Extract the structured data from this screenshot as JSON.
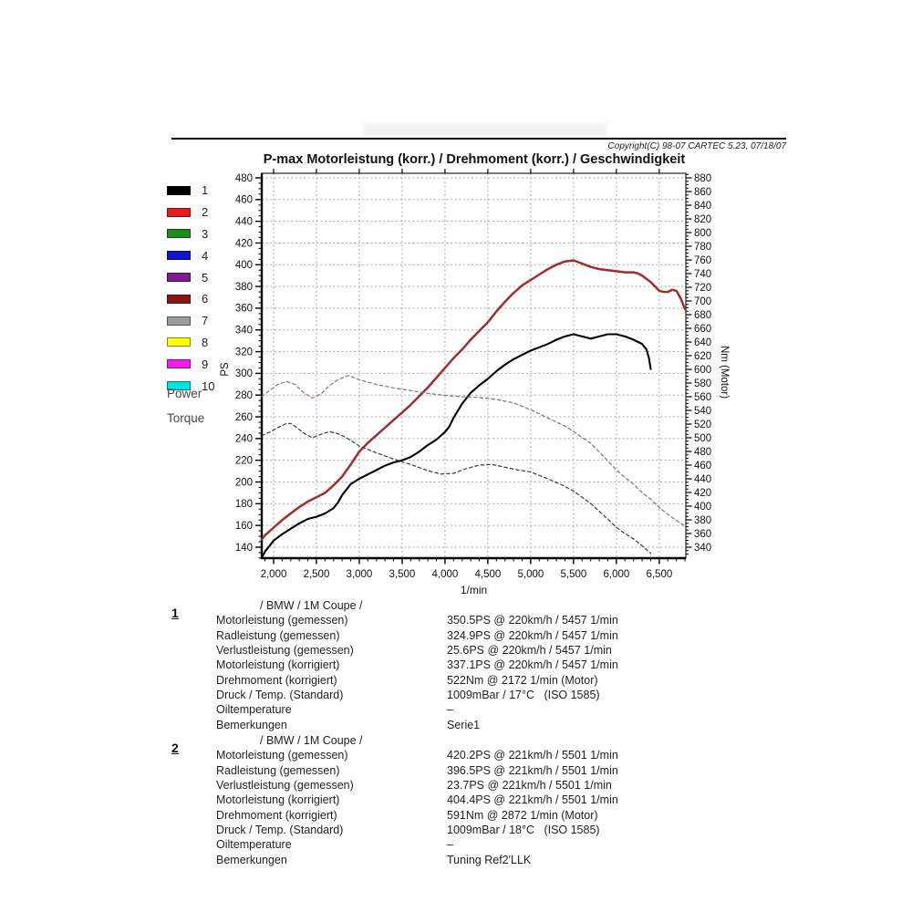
{
  "header": {
    "title": "P-max Motorleistung (korr.) / Drehmoment (korr.) / Geschwindigkeit",
    "copyright": "Copyright(C) 98-07 CARTEC 5.23, 07/18/07"
  },
  "legend": {
    "items": [
      {
        "label": "1",
        "color": "#000000"
      },
      {
        "label": "2",
        "color": "#e51c1c"
      },
      {
        "label": "3",
        "color": "#1e8a1e"
      },
      {
        "label": "4",
        "color": "#1414cc"
      },
      {
        "label": "5",
        "color": "#7d1a8c"
      },
      {
        "label": "6",
        "color": "#8b1616"
      },
      {
        "label": "7",
        "color": "#9c9c9c"
      },
      {
        "label": "8",
        "color": "#ffff00"
      },
      {
        "label": "9",
        "color": "#f01cf0"
      },
      {
        "label": "10",
        "color": "#00e0e0"
      }
    ],
    "power_label": "Power",
    "torque_label": "Torque"
  },
  "chart_data": {
    "type": "line",
    "title": "P-max Motorleistung (korr.) / Drehmoment (korr.) / Geschwindigkeit",
    "xlabel": "1/min",
    "ylabel_left": "PS",
    "ylabel_right": "Nm (Motor)",
    "grid": true,
    "x_frame": [
      1862,
      6810
    ],
    "ps_frame": [
      129.9,
      484.2
    ],
    "nm_frame": [
      324.0,
      886.7
    ],
    "x_ticks": [
      2000,
      2500,
      3000,
      3500,
      4000,
      4500,
      5000,
      5500,
      6000,
      6500
    ],
    "x_tick_labels": [
      "2,000",
      "2,500",
      "3,000",
      "3,500",
      "4,000",
      "4,500",
      "5,000",
      "5,500",
      "6,000",
      "6,500"
    ],
    "x_minor_step": 100,
    "y_left_ticks": [
      140,
      160,
      180,
      200,
      220,
      240,
      260,
      280,
      300,
      320,
      340,
      360,
      380,
      400,
      420,
      440,
      460,
      480
    ],
    "y_right_ticks": [
      340,
      360,
      380,
      400,
      420,
      440,
      460,
      480,
      500,
      520,
      540,
      560,
      580,
      600,
      620,
      640,
      660,
      680,
      700,
      720,
      740,
      760,
      780,
      800,
      820,
      840,
      860,
      880
    ],
    "series": [
      {
        "name": "1 Power (Serie)",
        "axis": "ps",
        "style": "solid",
        "color": "#000000",
        "width": 2.1,
        "points": [
          [
            1862,
            130
          ],
          [
            1900,
            136
          ],
          [
            1950,
            141
          ],
          [
            2000,
            146
          ],
          [
            2100,
            152
          ],
          [
            2200,
            157
          ],
          [
            2300,
            162
          ],
          [
            2400,
            166
          ],
          [
            2500,
            168
          ],
          [
            2600,
            171
          ],
          [
            2700,
            176
          ],
          [
            2750,
            181
          ],
          [
            2800,
            188
          ],
          [
            2900,
            198
          ],
          [
            3000,
            203
          ],
          [
            3100,
            207
          ],
          [
            3200,
            211
          ],
          [
            3300,
            215
          ],
          [
            3400,
            218
          ],
          [
            3500,
            220
          ],
          [
            3600,
            223
          ],
          [
            3700,
            228
          ],
          [
            3800,
            234
          ],
          [
            3900,
            239
          ],
          [
            4000,
            246
          ],
          [
            4050,
            251
          ],
          [
            4100,
            259
          ],
          [
            4200,
            272
          ],
          [
            4300,
            282
          ],
          [
            4400,
            289
          ],
          [
            4500,
            295
          ],
          [
            4600,
            302
          ],
          [
            4700,
            308
          ],
          [
            4800,
            313
          ],
          [
            4900,
            317
          ],
          [
            5000,
            321
          ],
          [
            5100,
            324
          ],
          [
            5200,
            327
          ],
          [
            5300,
            331
          ],
          [
            5400,
            334
          ],
          [
            5500,
            336
          ],
          [
            5600,
            334
          ],
          [
            5700,
            332
          ],
          [
            5800,
            334
          ],
          [
            5900,
            336
          ],
          [
            6000,
            336
          ],
          [
            6100,
            334
          ],
          [
            6200,
            331
          ],
          [
            6300,
            327
          ],
          [
            6350,
            322
          ],
          [
            6380,
            314
          ],
          [
            6400,
            304
          ]
        ]
      },
      {
        "name": "2 Power (Tuning)",
        "axis": "ps",
        "style": "solid",
        "color": "#a02c2c",
        "width": 2.5,
        "points": [
          [
            1862,
            147
          ],
          [
            1900,
            151
          ],
          [
            2000,
            158
          ],
          [
            2100,
            165
          ],
          [
            2200,
            171
          ],
          [
            2300,
            177
          ],
          [
            2400,
            182
          ],
          [
            2500,
            186
          ],
          [
            2600,
            190
          ],
          [
            2700,
            197
          ],
          [
            2800,
            205
          ],
          [
            2900,
            216
          ],
          [
            3000,
            228
          ],
          [
            3100,
            236
          ],
          [
            3200,
            243
          ],
          [
            3300,
            250
          ],
          [
            3400,
            257
          ],
          [
            3500,
            264
          ],
          [
            3600,
            271
          ],
          [
            3700,
            279
          ],
          [
            3800,
            287
          ],
          [
            3900,
            296
          ],
          [
            4000,
            305
          ],
          [
            4100,
            314
          ],
          [
            4200,
            322
          ],
          [
            4300,
            331
          ],
          [
            4400,
            339
          ],
          [
            4500,
            347
          ],
          [
            4600,
            357
          ],
          [
            4700,
            366
          ],
          [
            4800,
            374
          ],
          [
            4900,
            381
          ],
          [
            5000,
            386
          ],
          [
            5100,
            391
          ],
          [
            5200,
            396
          ],
          [
            5300,
            400
          ],
          [
            5400,
            403
          ],
          [
            5500,
            404
          ],
          [
            5600,
            401
          ],
          [
            5700,
            398
          ],
          [
            5800,
            396
          ],
          [
            5900,
            395
          ],
          [
            6000,
            394
          ],
          [
            6100,
            393
          ],
          [
            6200,
            393
          ],
          [
            6250,
            392
          ],
          [
            6300,
            390
          ],
          [
            6400,
            384
          ],
          [
            6500,
            376
          ],
          [
            6550,
            375
          ],
          [
            6600,
            375
          ],
          [
            6650,
            377
          ],
          [
            6700,
            376
          ],
          [
            6750,
            369
          ],
          [
            6800,
            359
          ]
        ]
      },
      {
        "name": "1 Torque (Serie)",
        "axis": "nm",
        "style": "dashed",
        "color": "#3a3a3a",
        "width": 1.2,
        "points": [
          [
            1862,
            503
          ],
          [
            1950,
            508
          ],
          [
            2050,
            515
          ],
          [
            2150,
            521
          ],
          [
            2200,
            521
          ],
          [
            2250,
            517
          ],
          [
            2350,
            507
          ],
          [
            2450,
            500
          ],
          [
            2550,
            505
          ],
          [
            2650,
            509
          ],
          [
            2750,
            506
          ],
          [
            2850,
            500
          ],
          [
            3000,
            488
          ],
          [
            3200,
            478
          ],
          [
            3400,
            469
          ],
          [
            3600,
            461
          ],
          [
            3800,
            452
          ],
          [
            3950,
            447
          ],
          [
            4100,
            448
          ],
          [
            4250,
            455
          ],
          [
            4400,
            460
          ],
          [
            4550,
            461
          ],
          [
            4700,
            457
          ],
          [
            4850,
            453
          ],
          [
            5000,
            450
          ],
          [
            5200,
            440
          ],
          [
            5350,
            432
          ],
          [
            5500,
            422
          ],
          [
            5700,
            404
          ],
          [
            5900,
            381
          ],
          [
            6000,
            369
          ],
          [
            6100,
            360
          ],
          [
            6200,
            352
          ],
          [
            6300,
            342
          ],
          [
            6400,
            331
          ]
        ]
      },
      {
        "name": "2 Torque (Tuning)",
        "axis": "nm",
        "style": "dashed",
        "color": "#8d7070",
        "width": 1.2,
        "points": [
          [
            1862,
            560
          ],
          [
            1950,
            569
          ],
          [
            2050,
            578
          ],
          [
            2150,
            582
          ],
          [
            2250,
            578
          ],
          [
            2350,
            566
          ],
          [
            2450,
            558
          ],
          [
            2550,
            564
          ],
          [
            2650,
            576
          ],
          [
            2750,
            585
          ],
          [
            2870,
            591
          ],
          [
            3000,
            585
          ],
          [
            3200,
            578
          ],
          [
            3400,
            573
          ],
          [
            3600,
            569
          ],
          [
            3800,
            565
          ],
          [
            4000,
            562
          ],
          [
            4200,
            560
          ],
          [
            4400,
            559
          ],
          [
            4600,
            556
          ],
          [
            4800,
            551
          ],
          [
            5000,
            541
          ],
          [
            5200,
            529
          ],
          [
            5400,
            517
          ],
          [
            5500,
            509
          ],
          [
            5700,
            492
          ],
          [
            5900,
            466
          ],
          [
            6000,
            453
          ],
          [
            6100,
            442
          ],
          [
            6200,
            432
          ],
          [
            6300,
            420
          ],
          [
            6400,
            410
          ],
          [
            6500,
            398
          ],
          [
            6600,
            388
          ],
          [
            6700,
            379
          ],
          [
            6790,
            372
          ]
        ]
      }
    ]
  },
  "results": [
    {
      "number": "1",
      "vehicle": "/ BMW / 1M Coupe /",
      "rows": [
        {
          "label": "Motorleistung (gemessen)",
          "value": "350.5PS @ 220km/h / 5457 1/min"
        },
        {
          "label": "Radleistung (gemessen)",
          "value": "324.9PS @ 220km/h / 5457 1/min"
        },
        {
          "label": "Verlustleistung (gemessen)",
          "value": "25.6PS @ 220km/h / 5457 1/min"
        },
        {
          "label": "Motorleistung (korrigiert)",
          "value": "337.1PS @ 220km/h / 5457 1/min"
        },
        {
          "label": "Drehmoment (korrigiert)",
          "value": "522Nm @ 2172 1/min (Motor)"
        },
        {
          "label": "Druck / Temp. (Standard)",
          "value": "1009mBar / 17°C   (ISO 1585)"
        },
        {
          "label": "Oiltemperature",
          "value": "–"
        },
        {
          "label": "Bemerkungen",
          "value": "Serie1"
        }
      ]
    },
    {
      "number": "2",
      "vehicle": "/ BMW / 1M Coupe /",
      "rows": [
        {
          "label": "Motorleistung (gemessen)",
          "value": "420.2PS @ 221km/h / 5501 1/min"
        },
        {
          "label": "Radleistung (gemessen)",
          "value": "396.5PS @ 221km/h / 5501 1/min"
        },
        {
          "label": "Verlustleistung (gemessen)",
          "value": "23.7PS @ 221km/h / 5501 1/min"
        },
        {
          "label": "Motorleistung (korrigiert)",
          "value": "404.4PS @ 221km/h / 5501 1/min"
        },
        {
          "label": "Drehmoment (korrigiert)",
          "value": "591Nm @ 2872 1/min (Motor)"
        },
        {
          "label": "Druck / Temp. (Standard)",
          "value": "1009mBar / 18°C   (ISO 1585)"
        },
        {
          "label": "Oiltemperature",
          "value": "–"
        },
        {
          "label": "Bemerkungen",
          "value": "Tuning Ref2'LLK"
        }
      ]
    }
  ]
}
